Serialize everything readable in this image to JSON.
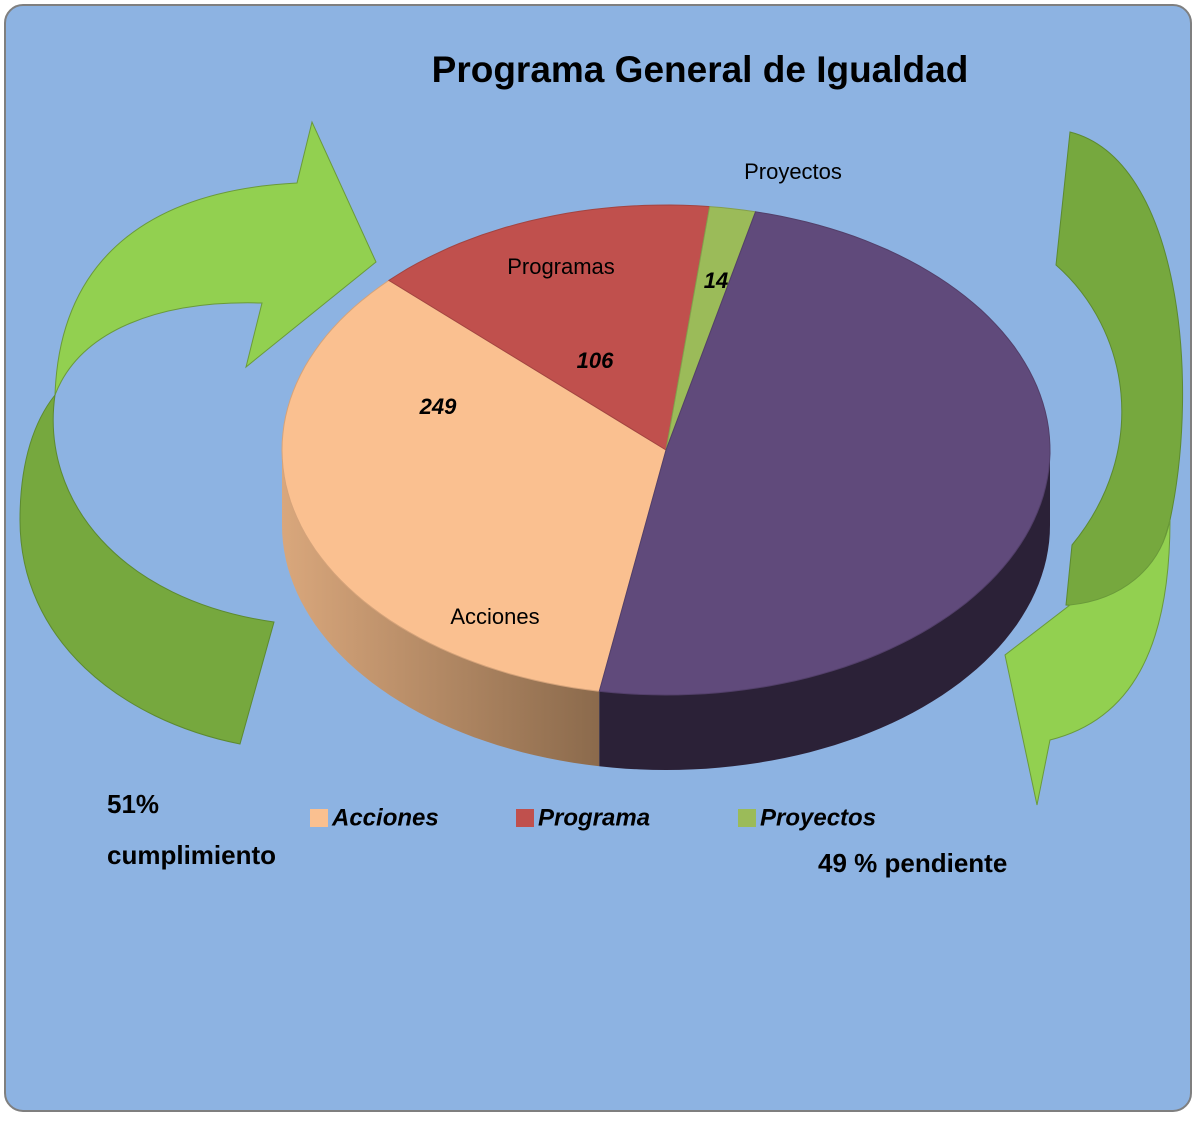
{
  "chart_data": {
    "type": "pie3d",
    "title": "Programa General de Igualdad",
    "categories": [
      "Acciones",
      "Programas",
      "Proyectos",
      null
    ],
    "values": [
      249,
      106,
      14,
      355
    ],
    "colors": [
      "#fac090",
      "#c0504d",
      "#9bbb59",
      "#604a7b"
    ],
    "legend": [
      "Acciones",
      "Programa",
      "Proyectos"
    ],
    "annotations": [
      "51%",
      "cumplimiento",
      "49 % pendiente"
    ]
  }
}
